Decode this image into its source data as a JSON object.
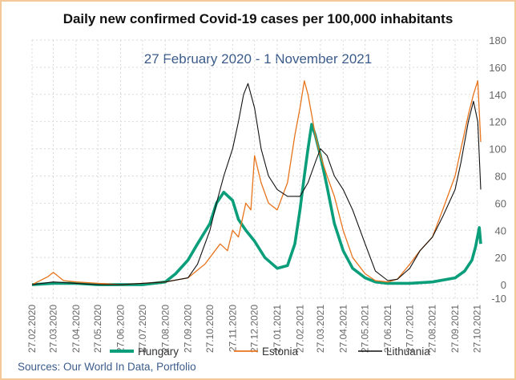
{
  "title": "Daily new confirmed Covid-19 cases per 100,000 inhabitants",
  "subtitle": "27 February 2020 - 1 November 2021",
  "source": "Sources: Our World In Data, Portfolio",
  "colors": {
    "Hungary": "#0a9e7a",
    "Estonia": "#e8741c",
    "Lithuania": "#111111",
    "grid": "#d9d9d9",
    "axis_text": "#666666"
  },
  "chart_data": {
    "type": "line",
    "title": "Daily new confirmed Covid-19 cases per 100,000 inhabitants",
    "subtitle": "27 February 2020 - 1 November 2021",
    "xlabel": "",
    "ylabel": "",
    "y_axis_side": "right",
    "ylim": [
      -10,
      180
    ],
    "yticks": [
      -10,
      0,
      20,
      40,
      60,
      80,
      100,
      120,
      140,
      160,
      180
    ],
    "grid": true,
    "legend": "bottom",
    "x_ticks": [
      "27.02.2020",
      "27.03.2020",
      "27.04.2020",
      "27.05.2020",
      "27.06.2020",
      "27.07.2020",
      "27.08.2020",
      "27.09.2020",
      "27.10.2020",
      "27.11.2020",
      "27.12.2020",
      "27.01.2021",
      "27.02.2021",
      "27.03.2021",
      "27.04.2021",
      "27.05.2021",
      "27.06.2021",
      "27.07.2021",
      "27.08.2021",
      "27.09.2021",
      "27.10.2021"
    ],
    "series": [
      {
        "name": "Hungary",
        "x": [
          "2020-02-27",
          "2020-03-27",
          "2020-04-27",
          "2020-05-27",
          "2020-06-27",
          "2020-07-27",
          "2020-08-27",
          "2020-09-10",
          "2020-09-27",
          "2020-10-10",
          "2020-10-27",
          "2020-11-05",
          "2020-11-15",
          "2020-11-27",
          "2020-12-05",
          "2020-12-15",
          "2020-12-27",
          "2021-01-10",
          "2021-01-27",
          "2021-02-10",
          "2021-02-20",
          "2021-02-27",
          "2021-03-05",
          "2021-03-10",
          "2021-03-15",
          "2021-03-20",
          "2021-03-27",
          "2021-04-05",
          "2021-04-15",
          "2021-04-27",
          "2021-05-10",
          "2021-05-27",
          "2021-06-10",
          "2021-06-27",
          "2021-07-27",
          "2021-08-27",
          "2021-09-27",
          "2021-10-10",
          "2021-10-20",
          "2021-10-25",
          "2021-10-30",
          "2021-11-01"
        ],
        "y": [
          0,
          1,
          1,
          0,
          0,
          0,
          2,
          8,
          18,
          30,
          45,
          60,
          68,
          62,
          48,
          40,
          32,
          20,
          12,
          14,
          30,
          55,
          80,
          100,
          118,
          110,
          95,
          72,
          45,
          25,
          12,
          5,
          2,
          1,
          1,
          2,
          5,
          10,
          18,
          28,
          42,
          30
        ]
      },
      {
        "name": "Estonia",
        "x": [
          "2020-02-27",
          "2020-03-20",
          "2020-03-27",
          "2020-04-10",
          "2020-04-27",
          "2020-05-27",
          "2020-06-27",
          "2020-07-27",
          "2020-08-27",
          "2020-09-27",
          "2020-10-20",
          "2020-10-27",
          "2020-11-10",
          "2020-11-20",
          "2020-11-27",
          "2020-12-05",
          "2020-12-15",
          "2020-12-22",
          "2020-12-27",
          "2021-01-05",
          "2021-01-15",
          "2021-01-27",
          "2021-02-10",
          "2021-02-20",
          "2021-02-27",
          "2021-03-05",
          "2021-03-10",
          "2021-03-15",
          "2021-03-20",
          "2021-03-27",
          "2021-04-05",
          "2021-04-15",
          "2021-04-27",
          "2021-05-10",
          "2021-05-27",
          "2021-06-10",
          "2021-06-27",
          "2021-07-10",
          "2021-07-27",
          "2021-08-10",
          "2021-08-27",
          "2021-09-10",
          "2021-09-27",
          "2021-10-05",
          "2021-10-15",
          "2021-10-22",
          "2021-10-28",
          "2021-11-01"
        ],
        "y": [
          0,
          6,
          9,
          3,
          2,
          1,
          0,
          1,
          2,
          5,
          15,
          20,
          30,
          25,
          40,
          35,
          60,
          55,
          95,
          75,
          60,
          55,
          75,
          110,
          130,
          150,
          140,
          125,
          110,
          95,
          80,
          65,
          40,
          20,
          8,
          3,
          2,
          4,
          15,
          25,
          35,
          55,
          80,
          100,
          125,
          140,
          150,
          105
        ]
      },
      {
        "name": "Lithuania",
        "x": [
          "2020-02-27",
          "2020-03-27",
          "2020-04-27",
          "2020-05-27",
          "2020-06-27",
          "2020-07-27",
          "2020-08-27",
          "2020-09-27",
          "2020-10-10",
          "2020-10-27",
          "2020-11-05",
          "2020-11-15",
          "2020-11-27",
          "2020-12-05",
          "2020-12-12",
          "2020-12-18",
          "2020-12-27",
          "2021-01-05",
          "2021-01-15",
          "2021-01-27",
          "2021-02-10",
          "2021-02-27",
          "2021-03-10",
          "2021-03-20",
          "2021-03-27",
          "2021-04-05",
          "2021-04-15",
          "2021-04-27",
          "2021-05-10",
          "2021-05-27",
          "2021-06-10",
          "2021-06-27",
          "2021-07-10",
          "2021-07-27",
          "2021-08-10",
          "2021-08-27",
          "2021-09-10",
          "2021-09-27",
          "2021-10-05",
          "2021-10-15",
          "2021-10-22",
          "2021-10-28",
          "2021-11-01"
        ],
        "y": [
          0,
          2,
          1,
          0,
          0,
          1,
          2,
          5,
          15,
          40,
          60,
          80,
          100,
          120,
          140,
          148,
          130,
          100,
          80,
          70,
          65,
          65,
          75,
          90,
          100,
          95,
          80,
          70,
          55,
          30,
          10,
          3,
          4,
          12,
          25,
          35,
          50,
          70,
          90,
          120,
          135,
          120,
          70
        ]
      }
    ]
  }
}
